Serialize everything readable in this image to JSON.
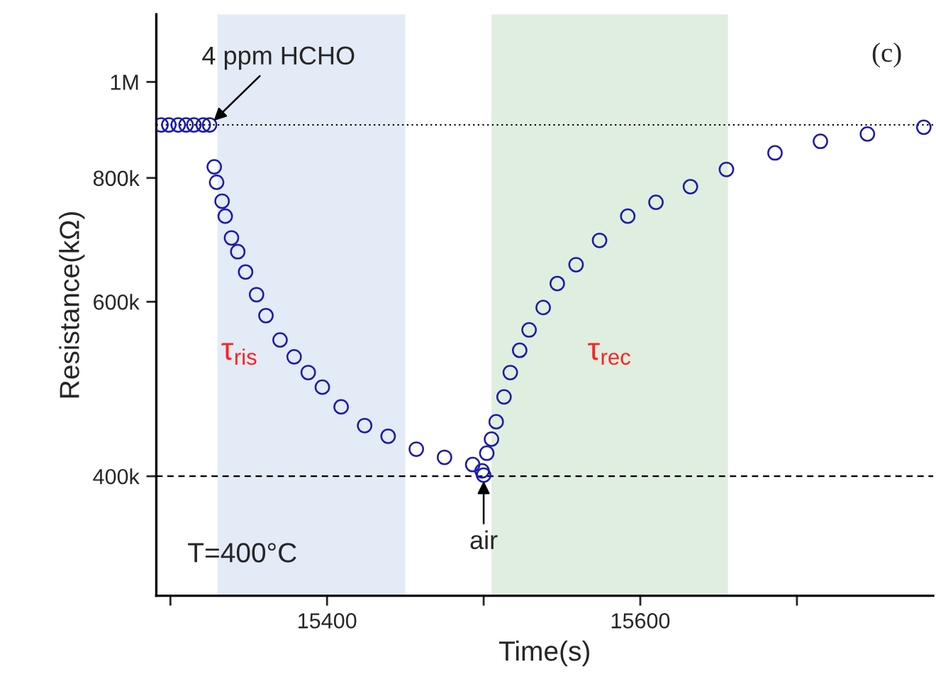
{
  "chart_data": {
    "type": "scatter",
    "xlabel": "Time(s)",
    "ylabel": "Resistance(kΩ)",
    "log": "y",
    "x": [
      15294,
      15299,
      15305,
      15310,
      15315,
      15321,
      15325,
      15328,
      15329.5,
      15333,
      15335,
      15339,
      15343,
      15348,
      15355,
      15361,
      15370,
      15379,
      15388,
      15397,
      15409,
      15424,
      15439,
      15457,
      15475,
      15493,
      15499,
      15500,
      15502,
      15505,
      15508,
      15513,
      15517,
      15523,
      15529,
      15538,
      15547,
      15559,
      15574,
      15592,
      15610,
      15632,
      15655,
      15686,
      15715,
      15745,
      15781
    ],
    "series": [
      {
        "color": "#1c1ca8",
        "values": [
          905000,
          905000,
          905000,
          905000,
          905000,
          905000,
          905000,
          821000,
          792000,
          758000,
          732000,
          696000,
          674000,
          643000,
          610000,
          581000,
          549000,
          528000,
          509000,
          492000,
          470000,
          450000,
          439000,
          426000,
          418000,
          411000,
          405000,
          401000,
          422000,
          436000,
          454000,
          481000,
          509000,
          536000,
          562000,
          592000,
          626000,
          654000,
          692000,
          732000,
          756000,
          784000,
          816000,
          848000,
          871000,
          886000,
          900000
        ]
      }
    ],
    "marker": "circle",
    "xlim": [
      15291,
      15787
    ],
    "xticks": [
      {
        "value": 15300,
        "label": null
      },
      15400,
      {
        "value": 15500,
        "label": null
      },
      15600,
      {
        "value": 15700,
        "label": null
      }
    ],
    "ylim": [
      303000,
      1170000
    ],
    "yticks": [
      {
        "value": 400000,
        "label": "400k"
      },
      {
        "value": 600000,
        "label": "600k"
      },
      {
        "value": 800000,
        "label": "800k"
      },
      {
        "value": 1000000,
        "label": "1M"
      }
    ],
    "bands": [
      {
        "axis": "x",
        "from": 15330,
        "to": 15450,
        "color": "#e3ebf6",
        "label": "τ$_{ris}$"
      },
      {
        "axis": "x",
        "from": 15505,
        "to": 15656,
        "color": "#e0eedf",
        "label": "τ$_{rec}$"
      }
    ],
    "ref_lines": [
      {
        "axis": "y",
        "value": 905000,
        "line_style": "dotted"
      },
      {
        "axis": "y",
        "value": 400000,
        "line_style": "dashed"
      }
    ],
    "annotations": [
      {
        "text": "4 ppm HCHO",
        "x": 15325,
        "y": 905000
      },
      {
        "text": "air",
        "x": 15500,
        "y": 401000
      },
      "(c)",
      "T=400°C"
    ]
  }
}
